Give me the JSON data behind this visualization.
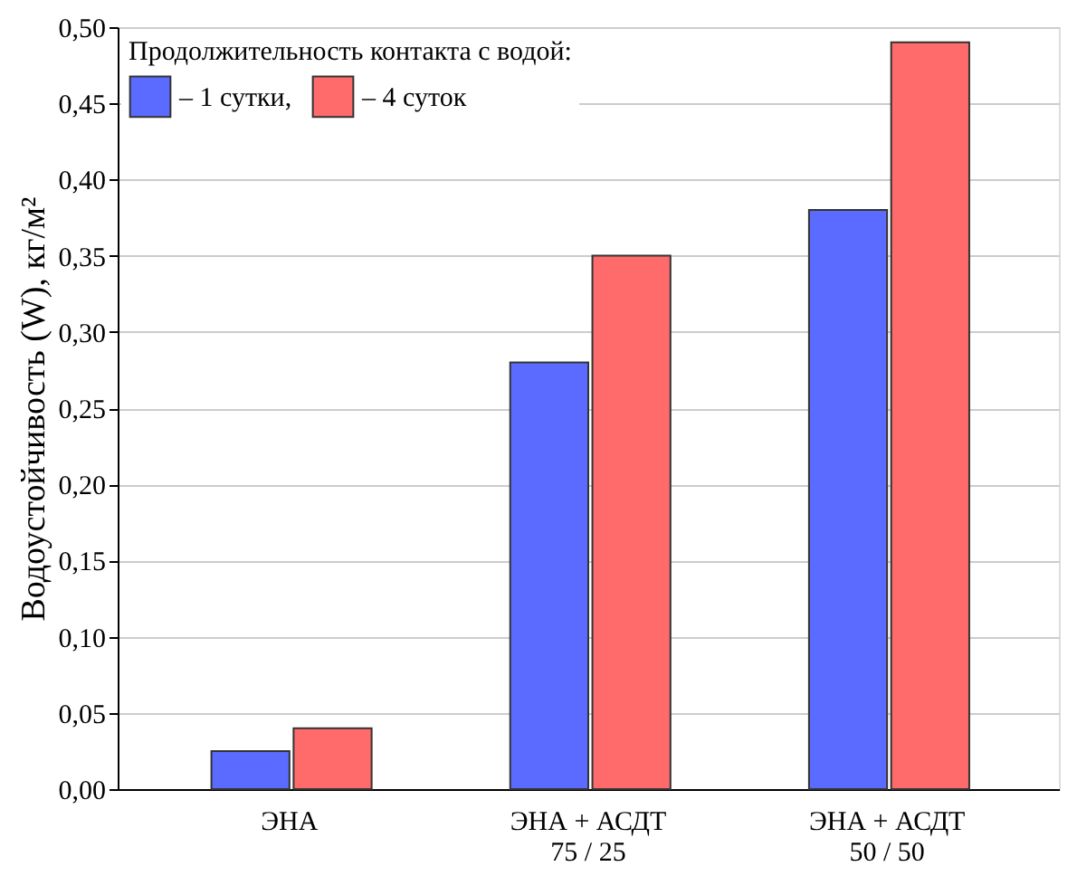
{
  "chart_data": {
    "type": "bar",
    "ylabel": "Водоустойчивость (W), кг/м²",
    "legend_title": "Продолжительность контакта с водой:",
    "categories": [
      "ЭНА",
      "ЭНА + АСДТ\n75 / 25",
      "ЭНА + АСДТ\n50 / 50"
    ],
    "series": [
      {
        "name": "– 1 сутки,",
        "color": "#5b6bff",
        "values": [
          0.025,
          0.28,
          0.38
        ]
      },
      {
        "name": "– 4 суток",
        "color": "#ff6b6b",
        "values": [
          0.04,
          0.35,
          0.49
        ]
      }
    ],
    "ylim": [
      0,
      0.5
    ],
    "yticks": [
      {
        "value": 0,
        "label": "0,00"
      },
      {
        "value": 0.05,
        "label": "0,05"
      },
      {
        "value": 0.1,
        "label": "0,10"
      },
      {
        "value": 0.15,
        "label": "0,15"
      },
      {
        "value": 0.2,
        "label": "0,20"
      },
      {
        "value": 0.25,
        "label": "0,25"
      },
      {
        "value": 0.3,
        "label": "0,30"
      },
      {
        "value": 0.35,
        "label": "0,35"
      },
      {
        "value": 0.4,
        "label": "0,40"
      },
      {
        "value": 0.45,
        "label": "0,45"
      },
      {
        "value": 0.5,
        "label": "0,50"
      }
    ],
    "grid": "y",
    "legend": "top left"
  }
}
